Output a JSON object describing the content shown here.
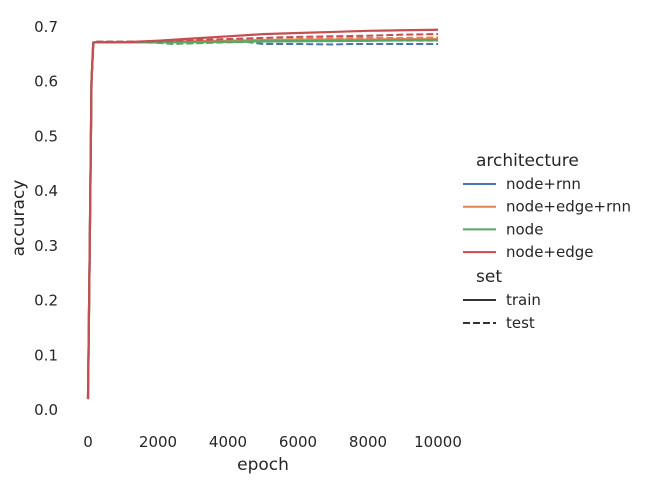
{
  "chart_data": {
    "type": "line",
    "xlabel": "epoch",
    "ylabel": "accuracy",
    "xlim": [
      -300,
      10000
    ],
    "ylim": [
      0.0,
      0.7
    ],
    "xticks": [
      0,
      2000,
      4000,
      6000,
      8000,
      10000
    ],
    "yticks": [
      0.0,
      0.1,
      0.2,
      0.3,
      0.4,
      0.5,
      0.6,
      0.7
    ],
    "xtick_labels": [
      "0",
      "2000",
      "4000",
      "6000",
      "8000",
      "10000"
    ],
    "ytick_labels": [
      "0.0",
      "0.1",
      "0.2",
      "0.3",
      "0.4",
      "0.5",
      "0.6",
      "0.7"
    ],
    "grid": false,
    "legend": {
      "placement": "right",
      "hue_title": "architecture",
      "style_title": "set",
      "hue_entries": [
        {
          "label": "node+rnn",
          "color": "#4c72b0"
        },
        {
          "label": "node+edge+rnn",
          "color": "#dd8452"
        },
        {
          "label": "node",
          "color": "#55a868"
        },
        {
          "label": "node+edge",
          "color": "#c44e52"
        }
      ],
      "style_entries": [
        {
          "label": "train",
          "dash": "solid"
        },
        {
          "label": "test",
          "dash": "dashed"
        }
      ]
    },
    "series": [
      {
        "name": "node+rnn",
        "set": "train",
        "color": "#4c72b0",
        "dash": "solid",
        "x": [
          0,
          50,
          100,
          150,
          200,
          1000,
          2000,
          3000,
          4000,
          5000,
          6000,
          7000,
          8000,
          9000,
          10000
        ],
        "y": [
          0.02,
          0.3,
          0.6,
          0.671,
          0.672,
          0.672,
          0.672,
          0.673,
          0.673,
          0.674,
          0.675,
          0.675,
          0.675,
          0.676,
          0.676
        ]
      },
      {
        "name": "node+rnn",
        "set": "test",
        "color": "#4c72b0",
        "dash": "dashed",
        "x": [
          0,
          50,
          100,
          150,
          200,
          1000,
          2000,
          3000,
          4000,
          4500,
          5000,
          6000,
          7000,
          7500,
          8000,
          9000,
          10000
        ],
        "y": [
          0.02,
          0.3,
          0.6,
          0.672,
          0.673,
          0.673,
          0.673,
          0.672,
          0.673,
          0.673,
          0.669,
          0.669,
          0.668,
          0.669,
          0.669,
          0.669,
          0.669
        ]
      },
      {
        "name": "node+edge+rnn",
        "set": "train",
        "color": "#dd8452",
        "dash": "solid",
        "x": [
          0,
          50,
          100,
          150,
          200,
          1000,
          2000,
          3000,
          4000,
          5000,
          6000,
          7000,
          8000,
          9000,
          10000
        ],
        "y": [
          0.02,
          0.3,
          0.6,
          0.671,
          0.672,
          0.672,
          0.673,
          0.674,
          0.675,
          0.676,
          0.677,
          0.677,
          0.677,
          0.678,
          0.678
        ]
      },
      {
        "name": "node+edge+rnn",
        "set": "test",
        "color": "#dd8452",
        "dash": "dashed",
        "x": [
          0,
          50,
          100,
          150,
          200,
          1000,
          2000,
          3000,
          4000,
          5000,
          6000,
          7000,
          8000,
          9000,
          10000
        ],
        "y": [
          0.02,
          0.3,
          0.6,
          0.672,
          0.673,
          0.673,
          0.673,
          0.674,
          0.675,
          0.676,
          0.678,
          0.679,
          0.68,
          0.68,
          0.681
        ]
      },
      {
        "name": "node",
        "set": "train",
        "color": "#55a868",
        "dash": "solid",
        "x": [
          0,
          50,
          100,
          150,
          200,
          1000,
          2000,
          3000,
          4000,
          5000,
          6000,
          7000,
          8000,
          9000,
          10000
        ],
        "y": [
          0.02,
          0.3,
          0.6,
          0.671,
          0.672,
          0.672,
          0.672,
          0.672,
          0.673,
          0.674,
          0.674,
          0.675,
          0.675,
          0.676,
          0.676
        ]
      },
      {
        "name": "node",
        "set": "test",
        "color": "#55a868",
        "dash": "dashed",
        "x": [
          0,
          50,
          100,
          150,
          200,
          1000,
          2000,
          2400,
          3000,
          4000,
          5000,
          6000,
          7000,
          8000,
          9000,
          10000
        ],
        "y": [
          0.02,
          0.3,
          0.6,
          0.672,
          0.673,
          0.673,
          0.671,
          0.669,
          0.67,
          0.672,
          0.673,
          0.674,
          0.674,
          0.675,
          0.675,
          0.675
        ]
      },
      {
        "name": "node+edge",
        "set": "train",
        "color": "#c44e52",
        "dash": "solid",
        "x": [
          0,
          50,
          100,
          150,
          200,
          1000,
          2000,
          3000,
          4000,
          5000,
          6000,
          7000,
          8000,
          9000,
          10000
        ],
        "y": [
          0.02,
          0.3,
          0.6,
          0.671,
          0.672,
          0.672,
          0.675,
          0.679,
          0.683,
          0.687,
          0.689,
          0.691,
          0.693,
          0.694,
          0.695
        ]
      },
      {
        "name": "node+edge",
        "set": "test",
        "color": "#c44e52",
        "dash": "dashed",
        "x": [
          0,
          50,
          100,
          150,
          200,
          1000,
          2000,
          3000,
          4000,
          5000,
          6000,
          7000,
          8000,
          9000,
          10000
        ],
        "y": [
          0.02,
          0.3,
          0.6,
          0.672,
          0.673,
          0.673,
          0.674,
          0.676,
          0.678,
          0.68,
          0.682,
          0.683,
          0.684,
          0.686,
          0.687
        ]
      }
    ]
  }
}
